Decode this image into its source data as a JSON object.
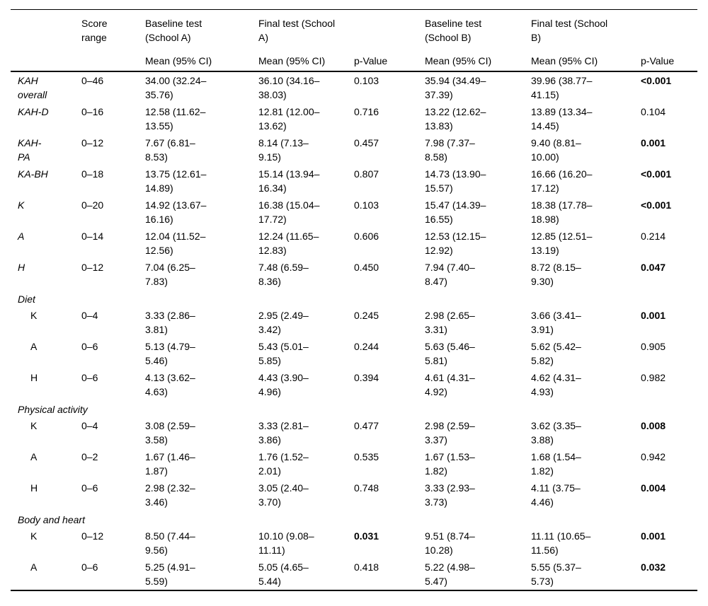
{
  "table": {
    "header": {
      "corner": "",
      "score_range": "Score\nrange",
      "baseline_a": "Baseline test\n(School A)",
      "final_a": "Final test (School\nA)",
      "baseline_b": "Baseline test\n(School B)",
      "final_b": "Final test (School\nB)",
      "mean_ci": "Mean (95% CI)",
      "p_value": "p-Value"
    },
    "rows": [
      {
        "type": "data",
        "label": "KAH\noverall",
        "italic": true,
        "indent": false,
        "score": "0–46",
        "baseline_a": "34.00 (32.24–\n35.76)",
        "final_a": "36.10 (34.16–\n38.03)",
        "p_a": "0.103",
        "p_a_bold": false,
        "baseline_b": "35.94 (34.49–\n37.39)",
        "final_b": "39.96 (38.77–\n41.15)",
        "p_b": "<0.001",
        "p_b_bold": true
      },
      {
        "type": "data",
        "label": "KAH-D",
        "italic": true,
        "indent": false,
        "score": "0–16",
        "baseline_a": "12.58 (11.62–\n13.55)",
        "final_a": "12.81 (12.00–\n13.62)",
        "p_a": "0.716",
        "p_a_bold": false,
        "baseline_b": "13.22 (12.62–\n13.83)",
        "final_b": "13.89 (13.34–\n14.45)",
        "p_b": "0.104",
        "p_b_bold": false
      },
      {
        "type": "data",
        "label": "KAH-\nPA",
        "italic": true,
        "indent": false,
        "score": "0–12",
        "baseline_a": "7.67 (6.81–\n8.53)",
        "final_a": "8.14 (7.13–\n9.15)",
        "p_a": "0.457",
        "p_a_bold": false,
        "baseline_b": "7.98 (7.37–\n8.58)",
        "final_b": "9.40 (8.81–\n10.00)",
        "p_b": "0.001",
        "p_b_bold": true
      },
      {
        "type": "data",
        "label": "KA-BH",
        "italic": true,
        "indent": false,
        "score": "0–18",
        "baseline_a": "13.75 (12.61–\n14.89)",
        "final_a": "15.14 (13.94–\n16.34)",
        "p_a": "0.807",
        "p_a_bold": false,
        "baseline_b": "14.73 (13.90–\n15.57)",
        "final_b": "16.66 (16.20–\n17.12)",
        "p_b": "<0.001",
        "p_b_bold": true
      },
      {
        "type": "data",
        "label": "K",
        "italic": true,
        "indent": false,
        "score": "0–20",
        "baseline_a": "14.92 (13.67–\n16.16)",
        "final_a": "16.38 (15.04–\n17.72)",
        "p_a": "0.103",
        "p_a_bold": false,
        "baseline_b": "15.47 (14.39–\n16.55)",
        "final_b": "18.38 (17.78–\n18.98)",
        "p_b": "<0.001",
        "p_b_bold": true
      },
      {
        "type": "data",
        "label": "A",
        "italic": true,
        "indent": false,
        "score": "0–14",
        "baseline_a": "12.04 (11.52–\n12.56)",
        "final_a": "12.24 (11.65–\n12.83)",
        "p_a": "0.606",
        "p_a_bold": false,
        "baseline_b": "12.53 (12.15–\n12.92)",
        "final_b": "12.85 (12.51–\n13.19)",
        "p_b": "0.214",
        "p_b_bold": false
      },
      {
        "type": "data",
        "label": "H",
        "italic": true,
        "indent": false,
        "score": "0–12",
        "baseline_a": "7.04 (6.25–\n7.83)",
        "final_a": "7.48 (6.59–\n8.36)",
        "p_a": "0.450",
        "p_a_bold": false,
        "baseline_b": "7.94 (7.40–\n8.47)",
        "final_b": "8.72 (8.15–\n9.30)",
        "p_b": "0.047",
        "p_b_bold": true
      },
      {
        "type": "section",
        "label": "Diet"
      },
      {
        "type": "data",
        "label": "K",
        "italic": false,
        "indent": true,
        "score": "0–4",
        "baseline_a": "3.33 (2.86–\n3.81)",
        "final_a": "2.95 (2.49–\n3.42)",
        "p_a": "0.245",
        "p_a_bold": false,
        "baseline_b": "2.98 (2.65–\n3.31)",
        "final_b": "3.66 (3.41–\n3.91)",
        "p_b": "0.001",
        "p_b_bold": true
      },
      {
        "type": "data",
        "label": "A",
        "italic": false,
        "indent": true,
        "score": "0–6",
        "baseline_a": "5.13 (4.79–\n5.46)",
        "final_a": "5.43 (5.01–\n5.85)",
        "p_a": "0.244",
        "p_a_bold": false,
        "baseline_b": "5.63 (5.46–\n5.81)",
        "final_b": "5.62 (5.42–\n5.82)",
        "p_b": "0.905",
        "p_b_bold": false
      },
      {
        "type": "data",
        "label": "H",
        "italic": false,
        "indent": true,
        "score": "0–6",
        "baseline_a": "4.13 (3.62–\n4.63)",
        "final_a": "4.43 (3.90–\n4.96)",
        "p_a": "0.394",
        "p_a_bold": false,
        "baseline_b": "4.61 (4.31–\n4.92)",
        "final_b": "4.62 (4.31–\n4.93)",
        "p_b": "0.982",
        "p_b_bold": false
      },
      {
        "type": "section",
        "label": "Physical activity"
      },
      {
        "type": "data",
        "label": "K",
        "italic": false,
        "indent": true,
        "score": "0–4",
        "baseline_a": "3.08 (2.59–\n3.58)",
        "final_a": "3.33 (2.81–\n3.86)",
        "p_a": "0.477",
        "p_a_bold": false,
        "baseline_b": "2.98 (2.59–\n3.37)",
        "final_b": "3.62 (3.35–\n3.88)",
        "p_b": "0.008",
        "p_b_bold": true
      },
      {
        "type": "data",
        "label": "A",
        "italic": false,
        "indent": true,
        "score": "0–2",
        "baseline_a": "1.67 (1.46–\n1.87)",
        "final_a": "1.76 (1.52–\n2.01)",
        "p_a": "0.535",
        "p_a_bold": false,
        "baseline_b": "1.67 (1.53–\n1.82)",
        "final_b": "1.68 (1.54–\n1.82)",
        "p_b": "0.942",
        "p_b_bold": false
      },
      {
        "type": "data",
        "label": "H",
        "italic": false,
        "indent": true,
        "score": "0–6",
        "baseline_a": "2.98 (2.32–\n3.46)",
        "final_a": "3.05 (2.40–\n3.70)",
        "p_a": "0.748",
        "p_a_bold": false,
        "baseline_b": "3.33 (2.93–\n3.73)",
        "final_b": "4.11 (3.75–\n4.46)",
        "p_b": "0.004",
        "p_b_bold": true
      },
      {
        "type": "section",
        "label": "Body and heart"
      },
      {
        "type": "data",
        "label": "K",
        "italic": false,
        "indent": true,
        "score": "0–12",
        "baseline_a": "8.50 (7.44–\n9.56)",
        "final_a": "10.10 (9.08–\n11.11)",
        "p_a": "0.031",
        "p_a_bold": true,
        "baseline_b": "9.51 (8.74–\n10.28)",
        "final_b": "11.11 (10.65–\n11.56)",
        "p_b": "0.001",
        "p_b_bold": true
      },
      {
        "type": "data",
        "label": "A",
        "italic": false,
        "indent": true,
        "score": "0–6",
        "baseline_a": "5.25 (4.91–\n5.59)",
        "final_a": "5.05 (4.65–\n5.44)",
        "p_a": "0.418",
        "p_a_bold": false,
        "baseline_b": "5.22 (4.98–\n5.47)",
        "final_b": "5.55 (5.37–\n5.73)",
        "p_b": "0.032",
        "p_b_bold": true
      }
    ]
  }
}
